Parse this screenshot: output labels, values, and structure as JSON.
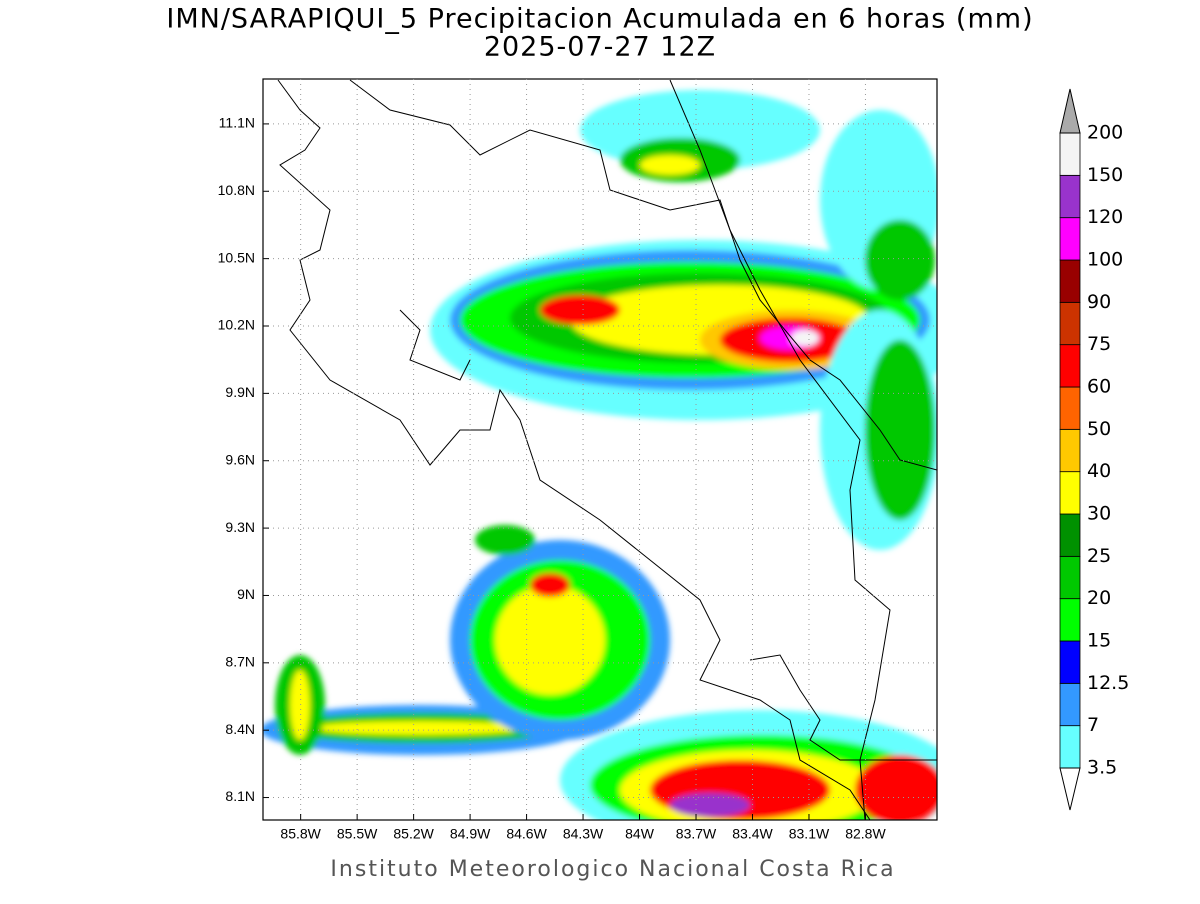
{
  "title": "IMN/SARAPIQUI_5 Precipitacion Acumulada en 6 horas (mm)",
  "subtitle": "2025-07-27 12Z",
  "map": {
    "lon_range": [
      -86.0,
      -82.42
    ],
    "lat_range": [
      8.0,
      11.3
    ],
    "lon_ticks": [
      {
        "value": -85.8,
        "label": "85.8W"
      },
      {
        "value": -85.5,
        "label": "85.5W"
      },
      {
        "value": -85.2,
        "label": "85.2W"
      },
      {
        "value": -84.9,
        "label": "84.9W"
      },
      {
        "value": -84.6,
        "label": "84.6W"
      },
      {
        "value": -84.3,
        "label": "84.3W"
      },
      {
        "value": -84.0,
        "label": "84W"
      },
      {
        "value": -83.7,
        "label": "83.7W"
      },
      {
        "value": -83.4,
        "label": "83.4W"
      },
      {
        "value": -83.1,
        "label": "83.1W"
      },
      {
        "value": -82.8,
        "label": "82.8W"
      }
    ],
    "lat_ticks": [
      {
        "value": 11.1,
        "label": "11.1N"
      },
      {
        "value": 10.8,
        "label": "10.8N"
      },
      {
        "value": 10.5,
        "label": "10.5N"
      },
      {
        "value": 10.2,
        "label": "10.2N"
      },
      {
        "value": 9.9,
        "label": "9.9N"
      },
      {
        "value": 9.6,
        "label": "9.6N"
      },
      {
        "value": 9.3,
        "label": "9.3N"
      },
      {
        "value": 9.0,
        "label": "9N"
      },
      {
        "value": 8.7,
        "label": "8.7N"
      },
      {
        "value": 8.4,
        "label": "8.4N"
      },
      {
        "value": 8.1,
        "label": "8.1N"
      }
    ],
    "grid": true
  },
  "colorbar": {
    "levels": [
      3.5,
      7,
      12.5,
      15,
      20,
      25,
      30,
      40,
      50,
      60,
      75,
      90,
      100,
      120,
      150,
      200
    ],
    "colors": [
      "#66ffff",
      "#3399ff",
      "#0000ff",
      "#00ff00",
      "#00c800",
      "#009100",
      "#ffff00",
      "#ffc800",
      "#ff6400",
      "#ff0000",
      "#cc3300",
      "#990000",
      "#ff00ff",
      "#9933cc",
      "#f5f5f5"
    ],
    "under_color": "#ffffff",
    "over_color": "#aaaaaa"
  },
  "footer": "Instituto Meteorologico Nacional Costa Rica"
}
